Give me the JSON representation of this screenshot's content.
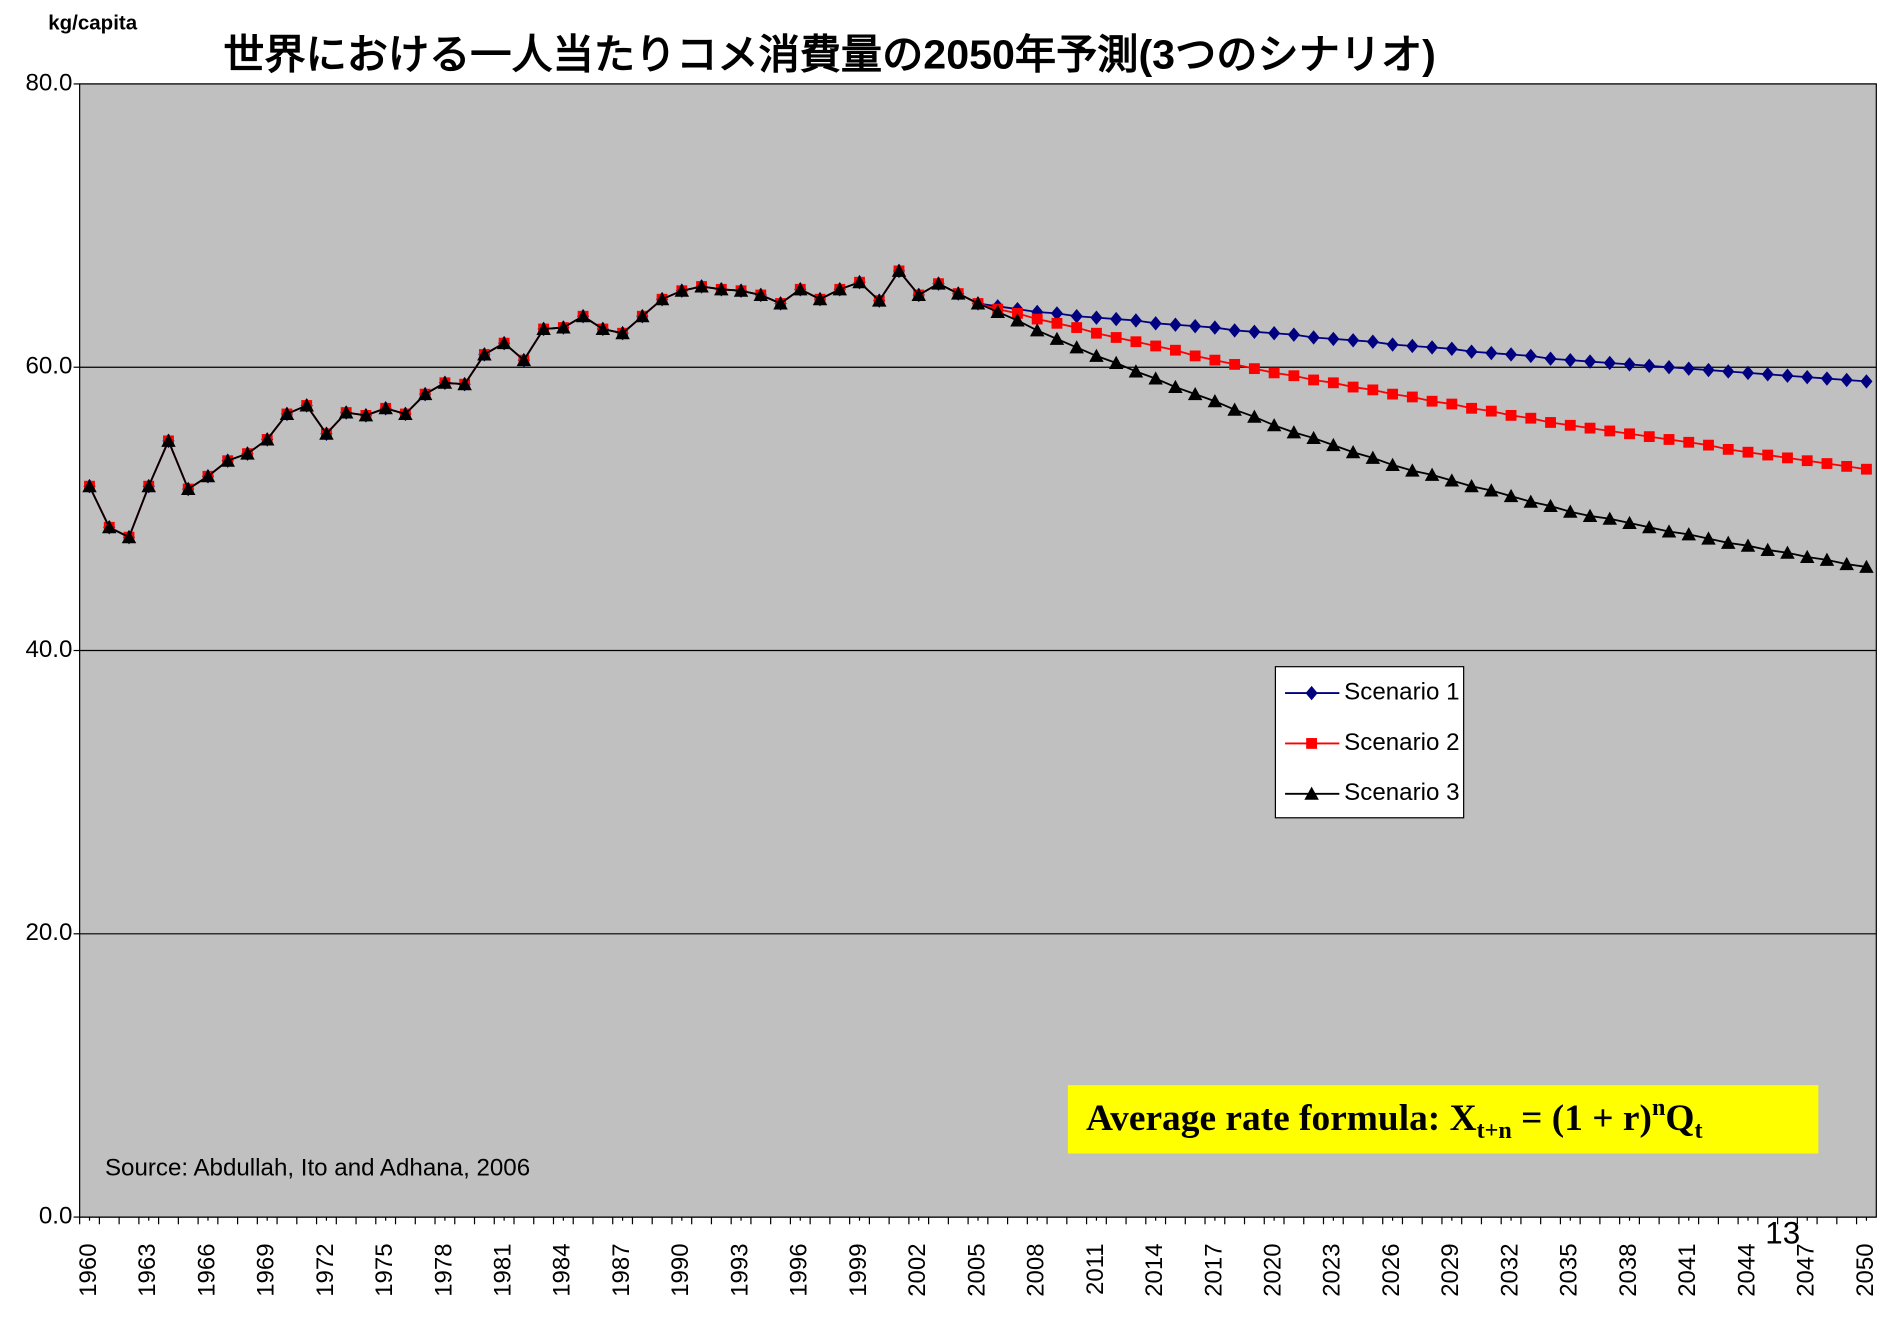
{
  "chart_data": {
    "type": "line",
    "title": "世界における一人当たりコメ消費量の2050年予測(3つのシナリオ)",
    "y_label": "kg/capita",
    "source": "Source: Abdullah, Ito and Adhana, 2006",
    "formula": {
      "text": "Average rate formula: X",
      "sub1": "t+n",
      "mid": " = (1 + r)",
      "sup": "n",
      "q": "Q",
      "sub2": "t"
    },
    "page_number": "13",
    "ylim": [
      0,
      80
    ],
    "yticks": [
      {
        "value": 0,
        "label": "0.0"
      },
      {
        "value": 20,
        "label": "20.0"
      },
      {
        "value": 40,
        "label": "40.0"
      },
      {
        "value": 60,
        "label": "60.0"
      },
      {
        "value": 80,
        "label": "80.0"
      }
    ],
    "grid": true,
    "legend": "right",
    "categories": [
      "1960",
      null,
      null,
      "1963",
      null,
      null,
      "1966",
      null,
      null,
      "1969",
      null,
      null,
      "1972",
      null,
      null,
      "1975",
      null,
      null,
      "1978",
      null,
      null,
      "1981",
      null,
      null,
      "1984",
      null,
      null,
      "1987",
      null,
      null,
      "1990",
      null,
      null,
      "1993",
      null,
      null,
      "1996",
      null,
      null,
      "1999",
      null,
      null,
      "2002",
      null,
      null,
      "2005",
      null,
      null,
      "2008",
      null,
      null,
      "2011",
      null,
      null,
      "2014",
      null,
      null,
      "2017",
      null,
      null,
      "2020",
      null,
      null,
      "2023",
      null,
      null,
      "2026",
      null,
      null,
      "2029",
      null,
      null,
      "2032",
      null,
      null,
      "2035",
      null,
      null,
      "2038",
      null,
      null,
      "2041",
      null,
      null,
      "2044",
      null,
      null,
      "2047",
      null,
      null,
      "2050"
    ],
    "series": [
      {
        "name": "Scenario 1",
        "color": "#000080",
        "marker": "diamond",
        "values": [
          51.6,
          48.7,
          48.0,
          51.6,
          54.8,
          51.4,
          52.3,
          53.4,
          53.9,
          54.9,
          56.7,
          57.3,
          55.3,
          56.8,
          56.6,
          57.1,
          56.7,
          58.1,
          58.9,
          58.8,
          60.9,
          61.7,
          60.5,
          62.7,
          62.8,
          63.6,
          62.7,
          62.4,
          63.6,
          64.8,
          65.4,
          65.7,
          65.5,
          65.4,
          65.1,
          64.5,
          65.5,
          64.8,
          65.5,
          66.0,
          64.7,
          66.8,
          65.1,
          65.9,
          65.2,
          64.5,
          64.3,
          64.1,
          63.9,
          63.8,
          63.6,
          63.5,
          63.4,
          63.3,
          63.1,
          63.0,
          62.9,
          62.8,
          62.6,
          62.5,
          62.4,
          62.3,
          62.1,
          62.0,
          61.9,
          61.8,
          61.6,
          61.5,
          61.4,
          61.3,
          61.1,
          61.0,
          60.9,
          60.8,
          60.6,
          60.5,
          60.4,
          60.3,
          60.2,
          60.1,
          60.0,
          59.9,
          59.8,
          59.7,
          59.6,
          59.5,
          59.4,
          59.3,
          59.2,
          59.1,
          59.0
        ]
      },
      {
        "name": "Scenario 2",
        "color": "#ff0000",
        "marker": "square",
        "values": [
          51.6,
          48.7,
          48.0,
          51.6,
          54.8,
          51.4,
          52.3,
          53.4,
          53.9,
          54.9,
          56.7,
          57.3,
          55.3,
          56.8,
          56.6,
          57.1,
          56.7,
          58.1,
          58.9,
          58.8,
          60.9,
          61.7,
          60.5,
          62.7,
          62.8,
          63.6,
          62.7,
          62.4,
          63.6,
          64.8,
          65.4,
          65.7,
          65.5,
          65.4,
          65.1,
          64.5,
          65.5,
          64.8,
          65.5,
          66.0,
          64.7,
          66.8,
          65.1,
          65.9,
          65.2,
          64.5,
          64.1,
          63.8,
          63.4,
          63.1,
          62.8,
          62.4,
          62.1,
          61.8,
          61.5,
          61.2,
          60.8,
          60.5,
          60.2,
          59.9,
          59.6,
          59.4,
          59.1,
          58.9,
          58.6,
          58.4,
          58.1,
          57.9,
          57.6,
          57.4,
          57.1,
          56.9,
          56.6,
          56.4,
          56.1,
          55.9,
          55.7,
          55.5,
          55.3,
          55.1,
          54.9,
          54.7,
          54.5,
          54.2,
          54.0,
          53.8,
          53.6,
          53.4,
          53.2,
          53.0,
          52.8
        ]
      },
      {
        "name": "Scenario 3",
        "color": "#000000",
        "marker": "triangle",
        "values": [
          51.6,
          48.7,
          48.0,
          51.6,
          54.8,
          51.4,
          52.3,
          53.4,
          53.9,
          54.9,
          56.7,
          57.3,
          55.3,
          56.8,
          56.6,
          57.1,
          56.7,
          58.1,
          58.9,
          58.8,
          60.9,
          61.7,
          60.5,
          62.7,
          62.8,
          63.6,
          62.7,
          62.4,
          63.6,
          64.8,
          65.4,
          65.7,
          65.5,
          65.4,
          65.1,
          64.5,
          65.5,
          64.8,
          65.5,
          66.0,
          64.7,
          66.8,
          65.1,
          65.9,
          65.2,
          64.5,
          63.9,
          63.3,
          62.6,
          62.0,
          61.4,
          60.8,
          60.3,
          59.7,
          59.2,
          58.6,
          58.1,
          57.6,
          57.0,
          56.5,
          55.9,
          55.4,
          55.0,
          54.5,
          54.0,
          53.6,
          53.1,
          52.7,
          52.4,
          52.0,
          51.6,
          51.3,
          50.9,
          50.5,
          50.2,
          49.8,
          49.5,
          49.3,
          49.0,
          48.7,
          48.4,
          48.2,
          47.9,
          47.6,
          47.4,
          47.1,
          46.9,
          46.6,
          46.4,
          46.1,
          45.9
        ]
      }
    ]
  }
}
